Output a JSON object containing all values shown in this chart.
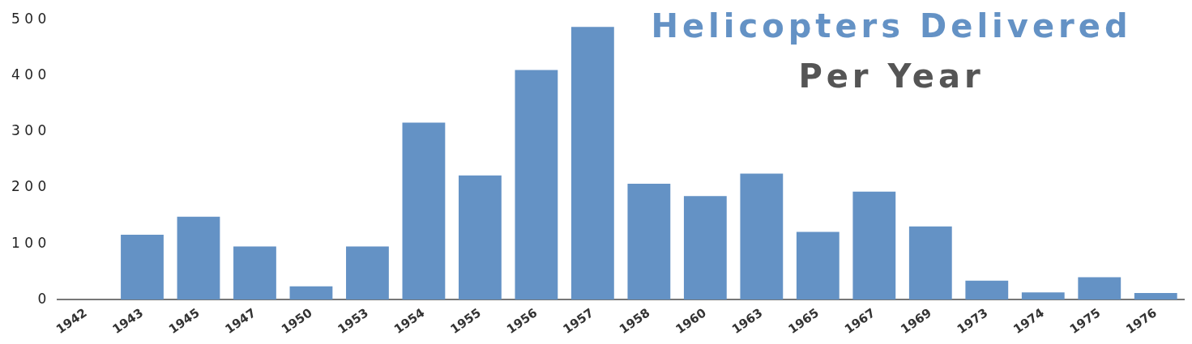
{
  "chart_data": {
    "type": "bar",
    "title": "Helicopters Delivered",
    "subtitle": "Per Year",
    "categories": [
      "1942",
      "1943",
      "1945",
      "1947",
      "1950",
      "1953",
      "1954",
      "1955",
      "1956",
      "1957",
      "1958",
      "1960",
      "1963",
      "1965",
      "1967",
      "1969",
      "1973",
      "1974",
      "1975",
      "1976"
    ],
    "values": [
      0,
      116,
      148,
      95,
      24,
      95,
      316,
      222,
      410,
      487,
      207,
      185,
      225,
      121,
      193,
      131,
      34,
      13,
      40,
      12
    ],
    "color": "#6492c5",
    "ylim": [
      0,
      500
    ],
    "yticks": [
      0,
      100,
      200,
      300,
      400,
      500
    ],
    "grid": false,
    "legend": false
  }
}
